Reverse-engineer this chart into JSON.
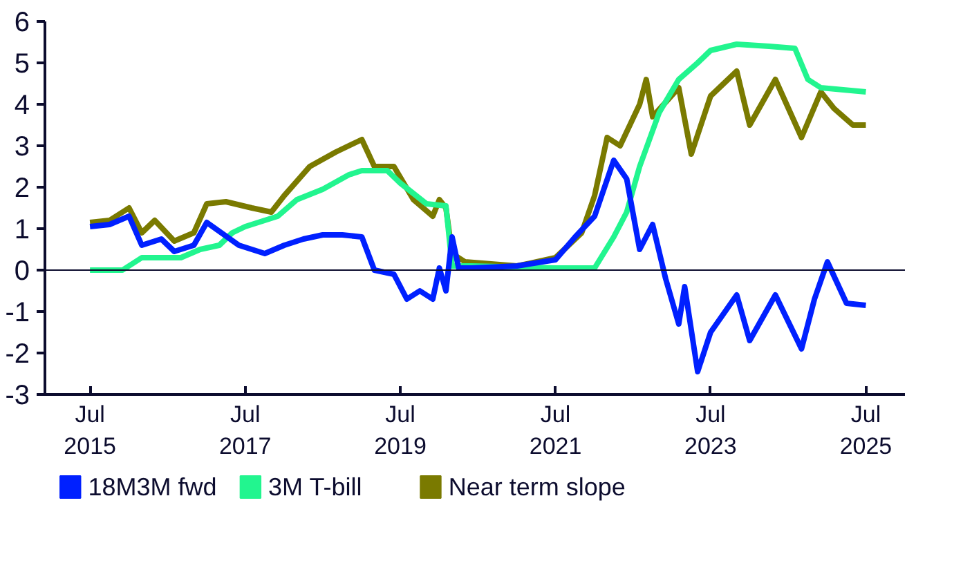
{
  "chart_data": {
    "type": "line",
    "xlim": [
      "2014-12",
      "2026-01"
    ],
    "ylim": [
      -3,
      6
    ],
    "yticks": [
      -3,
      -2,
      -1,
      0,
      1,
      2,
      3,
      4,
      5,
      6
    ],
    "xticks": [
      {
        "value": "2015-07",
        "label": "Jul\n2015"
      },
      {
        "value": "2017-07",
        "label": "Jul\n2017"
      },
      {
        "value": "2019-07",
        "label": "Jul\n2019"
      },
      {
        "value": "2021-07",
        "label": "Jul\n2021"
      },
      {
        "value": "2023-07",
        "label": "Jul\n2023"
      },
      {
        "value": "2025-07",
        "label": "Jul\n2025"
      }
    ],
    "grid": false,
    "legend": "bottom",
    "marker": "none",
    "line_style": "solid",
    "ref_lines": [
      {
        "axis": "y",
        "value": 0,
        "label": null,
        "color": "#0c0c2e"
      }
    ],
    "series": [
      {
        "name": "18M3M fwd",
        "color": "#0020ff",
        "x": [
          "2015-07",
          "2015-10",
          "2016-01",
          "2016-03",
          "2016-06",
          "2016-08",
          "2016-11",
          "2017-01",
          "2017-06",
          "2017-10",
          "2018-01",
          "2018-04",
          "2018-07",
          "2018-10",
          "2019-01",
          "2019-03",
          "2019-06",
          "2019-08",
          "2019-10",
          "2019-12",
          "2020-01",
          "2020-02",
          "2020-03",
          "2020-04",
          "2020-06",
          "2021-01",
          "2021-07",
          "2021-10",
          "2022-01",
          "2022-04",
          "2022-06",
          "2022-08",
          "2022-10",
          "2022-12",
          "2023-02",
          "2023-03",
          "2023-05",
          "2023-07",
          "2023-11",
          "2024-01",
          "2024-05",
          "2024-09",
          "2024-11",
          "2025-01",
          "2025-04",
          "2025-07"
        ],
        "values": [
          1.05,
          1.1,
          1.3,
          0.6,
          0.75,
          0.45,
          0.6,
          1.15,
          0.6,
          0.4,
          0.6,
          0.75,
          0.85,
          0.85,
          0.8,
          0.0,
          -0.1,
          -0.7,
          -0.5,
          -0.7,
          0.05,
          -0.5,
          0.8,
          0.05,
          0.05,
          0.1,
          0.25,
          0.8,
          1.3,
          2.65,
          2.2,
          0.5,
          1.1,
          -0.2,
          -1.3,
          -0.4,
          -2.45,
          -1.5,
          -0.6,
          -1.7,
          -0.6,
          -1.9,
          -0.7,
          0.2,
          -0.8,
          -0.85
        ]
      },
      {
        "name": "3M T-bill",
        "color": "#22f58f",
        "x": [
          "2015-07",
          "2015-12",
          "2016-03",
          "2016-09",
          "2016-12",
          "2017-03",
          "2017-05",
          "2017-07",
          "2017-12",
          "2018-03",
          "2018-07",
          "2018-11",
          "2019-01",
          "2019-05",
          "2019-07",
          "2019-11",
          "2020-02",
          "2020-03",
          "2020-06",
          "2021-07",
          "2022-01",
          "2022-04",
          "2022-06",
          "2022-08",
          "2022-11",
          "2023-02",
          "2023-05",
          "2023-07",
          "2023-11",
          "2024-04",
          "2024-08",
          "2024-10",
          "2024-12",
          "2025-07"
        ],
        "values": [
          0.0,
          0.0,
          0.3,
          0.3,
          0.5,
          0.6,
          0.9,
          1.05,
          1.3,
          1.7,
          1.95,
          2.3,
          2.4,
          2.4,
          2.1,
          1.6,
          1.55,
          0.1,
          0.1,
          0.05,
          0.05,
          0.8,
          1.4,
          2.5,
          3.8,
          4.6,
          5.0,
          5.3,
          5.45,
          5.4,
          5.35,
          4.6,
          4.4,
          4.3
        ]
      },
      {
        "name": "Near term slope",
        "color": "#7a7a00",
        "x": [
          "2015-07",
          "2015-10",
          "2016-01",
          "2016-03",
          "2016-05",
          "2016-08",
          "2016-11",
          "2017-01",
          "2017-04",
          "2017-08",
          "2017-11",
          "2018-01",
          "2018-05",
          "2018-09",
          "2019-01",
          "2019-03",
          "2019-06",
          "2019-09",
          "2019-12",
          "2020-01",
          "2020-02",
          "2020-03",
          "2020-05",
          "2021-01",
          "2021-07",
          "2021-11",
          "2022-01",
          "2022-03",
          "2022-05",
          "2022-08",
          "2022-09",
          "2022-10",
          "2023-02",
          "2023-04",
          "2023-07",
          "2023-11",
          "2024-01",
          "2024-05",
          "2024-09",
          "2024-12",
          "2025-02",
          "2025-05",
          "2025-07"
        ],
        "values": [
          1.15,
          1.2,
          1.5,
          0.9,
          1.2,
          0.7,
          0.9,
          1.6,
          1.65,
          1.5,
          1.4,
          1.8,
          2.5,
          2.85,
          3.15,
          2.5,
          2.5,
          1.7,
          1.3,
          1.7,
          1.5,
          0.4,
          0.2,
          0.1,
          0.3,
          0.9,
          1.8,
          3.2,
          3.0,
          4.0,
          4.6,
          3.7,
          4.4,
          2.8,
          4.2,
          4.8,
          3.5,
          4.6,
          3.2,
          4.3,
          3.9,
          3.5,
          3.5
        ]
      }
    ]
  }
}
